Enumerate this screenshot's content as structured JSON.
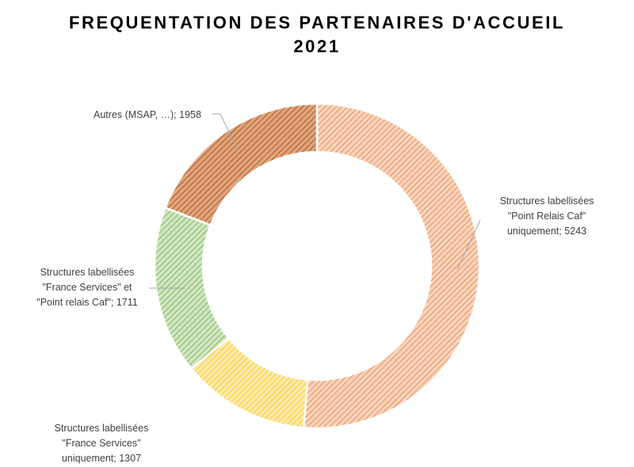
{
  "chart_data": {
    "type": "pie",
    "variant": "doughnut",
    "title": "FREQUENTATION DES PARTENAIRES D'ACCUEIL",
    "subtitle": "2021",
    "legend": "none",
    "slices": [
      {
        "label": "Structures labellisées \"Point Relais Caf\" uniquement",
        "label_lines": [
          "Structures labellisées",
          "\"Point Relais Caf\"",
          "uniquement; 5243"
        ],
        "value": 5243,
        "color": "#f4b183",
        "edge": "#e07d45"
      },
      {
        "label": "Structures labellisées \"France Services\" uniquement",
        "label_lines": [
          "Structures labellisées",
          "\"France Services\"",
          "uniquement; 1307"
        ],
        "value": 1307,
        "color": "#ffd966",
        "edge": "#f0c000"
      },
      {
        "label": "Structures labellisées \"France Services\" et \"Point relais Caf\"",
        "label_lines": [
          "Structures labellisées",
          "\"France Services\" et",
          "\"Point relais Caf\"; 1711"
        ],
        "value": 1711,
        "color": "#a9d18e",
        "edge": "#6fac46"
      },
      {
        "label": "Autres (MSAP, …)",
        "label_lines": [
          "Autres (MSAP, …); 1958"
        ],
        "value": 1958,
        "color": "#c55a11",
        "edge": "#a0450d"
      }
    ]
  }
}
